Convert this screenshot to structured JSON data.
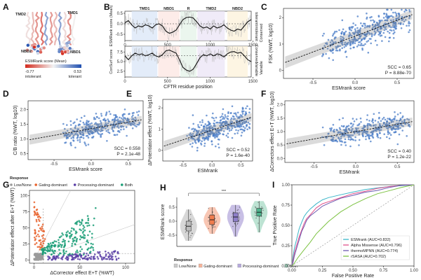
{
  "panels": {
    "A": {
      "label": "A",
      "regions": [
        "TMD2",
        "TMD1",
        "NBD2",
        "NBD1"
      ],
      "colorbar": {
        "title": "ESMRank score (Mean)",
        "min": "-0.77",
        "max": "0.53",
        "min_label": "intolerant",
        "max_label": "tolerant"
      },
      "colors": {
        "low": "#1f4fb0",
        "high": "#d42b1e"
      }
    },
    "B": {
      "label": "B"
    },
    "C": {
      "label": "C"
    },
    "D": {
      "label": "D"
    },
    "E": {
      "label": "E"
    },
    "F": {
      "label": "F"
    },
    "G": {
      "label": "G"
    },
    "H": {
      "label": "H"
    },
    "I": {
      "label": "I"
    }
  },
  "chart_data": [
    {
      "id": "B-top",
      "type": "line",
      "xlabel": "",
      "ylabel": "ESMRank score (Mean)",
      "xticks": [
        "0",
        "500",
        "1000",
        "1500"
      ],
      "yticks": [
        "0.5",
        "0.0",
        "-0.5"
      ],
      "xlim": [
        0,
        1480
      ],
      "ylim": [
        -0.8,
        0.6
      ],
      "domains": [
        {
          "name": "TMD1",
          "start": 80,
          "end": 380,
          "color": "#dce7f7"
        },
        {
          "name": "NBD1",
          "start": 390,
          "end": 640,
          "color": "#fde7e3"
        },
        {
          "name": "R",
          "start": 650,
          "end": 840,
          "color": "#e6f4ea"
        },
        {
          "name": "TMD2",
          "start": 850,
          "end": 1170,
          "color": "#ece6f6"
        },
        {
          "name": "NBD2",
          "start": 1200,
          "end": 1440,
          "color": "#fdf2dc"
        }
      ],
      "side_labels": [
        "tolerant",
        "intolerant"
      ],
      "smoothed": [
        [
          0,
          0.05
        ],
        [
          40,
          0.15
        ],
        [
          80,
          -0.05
        ],
        [
          120,
          -0.2
        ],
        [
          160,
          -0.1
        ],
        [
          200,
          -0.15
        ],
        [
          240,
          -0.05
        ],
        [
          280,
          -0.1
        ],
        [
          320,
          -0.2
        ],
        [
          360,
          -0.05
        ],
        [
          400,
          0.0
        ],
        [
          440,
          -0.1
        ],
        [
          480,
          -0.35
        ],
        [
          520,
          -0.45
        ],
        [
          560,
          -0.4
        ],
        [
          600,
          -0.3
        ],
        [
          640,
          -0.05
        ],
        [
          680,
          0.2
        ],
        [
          720,
          0.3
        ],
        [
          760,
          0.32
        ],
        [
          800,
          0.28
        ],
        [
          840,
          0.1
        ],
        [
          880,
          -0.1
        ],
        [
          920,
          -0.2
        ],
        [
          960,
          -0.15
        ],
        [
          1000,
          -0.25
        ],
        [
          1040,
          -0.1
        ],
        [
          1080,
          -0.2
        ],
        [
          1120,
          -0.15
        ],
        [
          1160,
          -0.05
        ],
        [
          1200,
          -0.2
        ],
        [
          1240,
          -0.3
        ],
        [
          1280,
          -0.35
        ],
        [
          1320,
          -0.25
        ],
        [
          1360,
          -0.3
        ],
        [
          1400,
          -0.1
        ],
        [
          1440,
          0.1
        ],
        [
          1480,
          0.2
        ]
      ],
      "raw_spread": 0.35,
      "dashed_y": 0.0
    },
    {
      "id": "B-bottom",
      "type": "line",
      "xlabel": "CFTR residue position",
      "ylabel": "ConSurf score",
      "xticks": [
        "0",
        "500",
        "1000",
        "1500"
      ],
      "yticks": [
        "7.5",
        "5.0",
        "2.5"
      ],
      "xlim": [
        0,
        1480
      ],
      "ylim": [
        1.0,
        9.0
      ],
      "side_labels": [
        "Conserved",
        "Variable"
      ],
      "smoothed": [
        [
          0,
          6.5
        ],
        [
          40,
          5.5
        ],
        [
          80,
          6.5
        ],
        [
          120,
          7.2
        ],
        [
          160,
          6.8
        ],
        [
          200,
          7.0
        ],
        [
          240,
          6.5
        ],
        [
          280,
          6.8
        ],
        [
          320,
          7.2
        ],
        [
          360,
          6.5
        ],
        [
          400,
          6.2
        ],
        [
          440,
          6.8
        ],
        [
          480,
          7.8
        ],
        [
          520,
          8.0
        ],
        [
          560,
          7.6
        ],
        [
          600,
          7.2
        ],
        [
          640,
          5.5
        ],
        [
          680,
          3.5
        ],
        [
          720,
          2.8
        ],
        [
          760,
          2.5
        ],
        [
          800,
          3.0
        ],
        [
          840,
          4.5
        ],
        [
          880,
          6.0
        ],
        [
          920,
          6.8
        ],
        [
          960,
          6.5
        ],
        [
          1000,
          7.0
        ],
        [
          1040,
          6.5
        ],
        [
          1080,
          7.0
        ],
        [
          1120,
          6.8
        ],
        [
          1160,
          6.2
        ],
        [
          1200,
          7.0
        ],
        [
          1240,
          7.5
        ],
        [
          1280,
          7.6
        ],
        [
          1320,
          7.2
        ],
        [
          1360,
          7.4
        ],
        [
          1400,
          6.5
        ],
        [
          1440,
          5.5
        ],
        [
          1480,
          5.0
        ]
      ],
      "raw_spread": 2.0,
      "dashed_y": 6.5
    },
    {
      "id": "C",
      "type": "scatter",
      "xlabel": "ESMrank score",
      "ylabel": "FSK (%WT, log10)",
      "xticks": [
        "-0.5",
        "0.0",
        "0.5"
      ],
      "yticks": [
        "0",
        "1",
        "2"
      ],
      "xlim": [
        -0.85,
        0.7
      ],
      "ylim": [
        -0.3,
        2.35
      ],
      "fit": {
        "slope": 1.2,
        "intercept": 1.3
      },
      "n_points": 400,
      "seed": 11,
      "noise": 0.45,
      "side_labels": [
        "Conserved",
        "Variable"
      ],
      "stats": [
        "SCC = 0.65",
        "P = 8.88e-70"
      ]
    },
    {
      "id": "D",
      "type": "scatter",
      "xlabel": "ESMrank score",
      "ylabel": "C/B ratio (%WT, log10)",
      "xticks": [
        "-0.5",
        "0.0",
        "0.5"
      ],
      "yticks": [
        "0.5",
        "1.0",
        "1.5",
        "2.0"
      ],
      "xlim": [
        -0.85,
        0.7
      ],
      "ylim": [
        0.3,
        2.3
      ],
      "fit": {
        "slope": 0.45,
        "intercept": 1.35
      },
      "n_points": 350,
      "seed": 22,
      "noise": 0.32,
      "stats": [
        "SCC = 0.558",
        "P = 2.1e-48"
      ]
    },
    {
      "id": "E",
      "type": "scatter",
      "xlabel": "ESMrank",
      "ylabel": "ΔPotentiator effect (%WT, log10)",
      "xticks": [
        "-0.5",
        "0.0",
        "0.5"
      ],
      "yticks": [
        "0",
        "1",
        "2"
      ],
      "xlim": [
        -0.85,
        0.7
      ],
      "ylim": [
        -0.5,
        2.4
      ],
      "fit": {
        "slope": 0.9,
        "intercept": 0.95
      },
      "n_points": 380,
      "seed": 33,
      "noise": 0.5,
      "stats": [
        "SCC = 0.52",
        "P = 1.6e-40"
      ]
    },
    {
      "id": "F",
      "type": "scatter",
      "xlabel": "ESMrank",
      "ylabel": "ΔCorrectors effect E+T (%WT, log10)",
      "xticks": [
        "-0.5",
        "0.0",
        "0.5"
      ],
      "yticks": [
        "0.0",
        "0.5",
        "1.0",
        "1.5",
        "2.0"
      ],
      "xlim": [
        -0.85,
        0.7
      ],
      "ylim": [
        -0.15,
        2.15
      ],
      "fit": {
        "slope": 0.55,
        "intercept": 1.0
      },
      "n_points": 360,
      "seed": 44,
      "noise": 0.38,
      "stats": [
        "SCC = 0.40",
        "P = 1.2e-22"
      ]
    },
    {
      "id": "G",
      "type": "scatter",
      "title": "Response",
      "xlabel": "ΔCorrector effect E+T (%WT)",
      "ylabel": "ΔPotentiator effect after E+T (%WT)",
      "xticks": [
        "0",
        "50",
        "100"
      ],
      "yticks": [
        "0",
        "25",
        "50",
        "75",
        "100"
      ],
      "xlim": [
        -5,
        110
      ],
      "ylim": [
        -5,
        108
      ],
      "series": [
        {
          "name": "Low/None",
          "color": "#9a9a9a",
          "n": 120
        },
        {
          "name": "Gating-dominant",
          "color": "#e8622c",
          "n": 70
        },
        {
          "name": "Processing-dominant",
          "color": "#5b3fa6",
          "n": 140
        },
        {
          "name": "Both",
          "color": "#1a9e77",
          "n": 200
        }
      ]
    },
    {
      "id": "H",
      "type": "violin",
      "ylabel": "ESMRank score",
      "yticks": [
        "0.5",
        "0.0",
        "-0.5"
      ],
      "ylim": [
        -0.9,
        0.85
      ],
      "legend_title": "Response",
      "categories": [
        "Low/None",
        "Gating-dominant",
        "Processing-dominant",
        "Both"
      ],
      "colors": [
        "#c9c9c9",
        "#f5b39a",
        "#b6a9dc",
        "#a7d9c4"
      ],
      "box_colors": [
        "#bdbdbd",
        "#f07d4e",
        "#8e7fc8",
        "#4fb38d"
      ],
      "medians": [
        -0.18,
        0.05,
        0.15,
        0.32
      ],
      "q1": [
        -0.35,
        -0.12,
        -0.02,
        0.18
      ],
      "q3": [
        0.0,
        0.22,
        0.3,
        0.46
      ],
      "ranges": [
        [
          -0.7,
          0.42
        ],
        [
          -0.45,
          0.5
        ],
        [
          -0.55,
          0.58
        ],
        [
          -0.4,
          0.72
        ]
      ],
      "signif": "***"
    },
    {
      "id": "I",
      "type": "line",
      "xlabel": "False Positive Rate",
      "ylabel": "True Positive Rate",
      "xticks": [
        "0.00",
        "0.25",
        "0.50",
        "0.75",
        "1.00"
      ],
      "yticks": [
        "0.00",
        "0.25",
        "0.50",
        "0.75",
        "1.00"
      ],
      "xlim": [
        0,
        1
      ],
      "ylim": [
        0,
        1
      ],
      "series": [
        {
          "name": "ESMrank (AUC=0.832)",
          "color": "#3bb6c9",
          "x": [
            0,
            0.01,
            0.02,
            0.04,
            0.06,
            0.08,
            0.1,
            0.12,
            0.15,
            0.2,
            0.25,
            0.3,
            0.4,
            0.5,
            0.6,
            0.7,
            0.8,
            0.9,
            1.0
          ],
          "y": [
            0,
            0.12,
            0.22,
            0.34,
            0.45,
            0.54,
            0.6,
            0.66,
            0.71,
            0.77,
            0.81,
            0.84,
            0.88,
            0.91,
            0.94,
            0.96,
            0.98,
            0.99,
            1.0
          ]
        },
        {
          "name": "Alpha Missense (AUC=0.796)",
          "color": "#e0508b",
          "x": [
            0,
            0.01,
            0.02,
            0.04,
            0.06,
            0.08,
            0.1,
            0.12,
            0.15,
            0.2,
            0.25,
            0.3,
            0.4,
            0.5,
            0.6,
            0.7,
            0.8,
            0.9,
            1.0
          ],
          "y": [
            0,
            0.08,
            0.16,
            0.27,
            0.37,
            0.45,
            0.52,
            0.58,
            0.64,
            0.71,
            0.76,
            0.8,
            0.85,
            0.89,
            0.92,
            0.95,
            0.97,
            0.99,
            1.0
          ]
        },
        {
          "name": "thermoMPNN (AUC=0.774)",
          "color": "#6d5ab0",
          "x": [
            0,
            0.01,
            0.02,
            0.04,
            0.06,
            0.08,
            0.1,
            0.12,
            0.15,
            0.2,
            0.25,
            0.3,
            0.4,
            0.5,
            0.6,
            0.7,
            0.8,
            0.9,
            1.0
          ],
          "y": [
            0,
            0.05,
            0.12,
            0.22,
            0.33,
            0.42,
            0.49,
            0.55,
            0.61,
            0.68,
            0.73,
            0.77,
            0.83,
            0.87,
            0.91,
            0.94,
            0.97,
            0.99,
            1.0
          ]
        },
        {
          "name": "rSASA (AUC=0.702)",
          "color": "#7cc242",
          "x": [
            0,
            0.02,
            0.05,
            0.1,
            0.15,
            0.2,
            0.25,
            0.3,
            0.4,
            0.5,
            0.6,
            0.7,
            0.8,
            0.9,
            1.0
          ],
          "y": [
            0,
            0.04,
            0.1,
            0.2,
            0.3,
            0.4,
            0.48,
            0.55,
            0.66,
            0.75,
            0.82,
            0.88,
            0.93,
            0.97,
            1.0
          ]
        }
      ],
      "diagonal": true
    }
  ]
}
